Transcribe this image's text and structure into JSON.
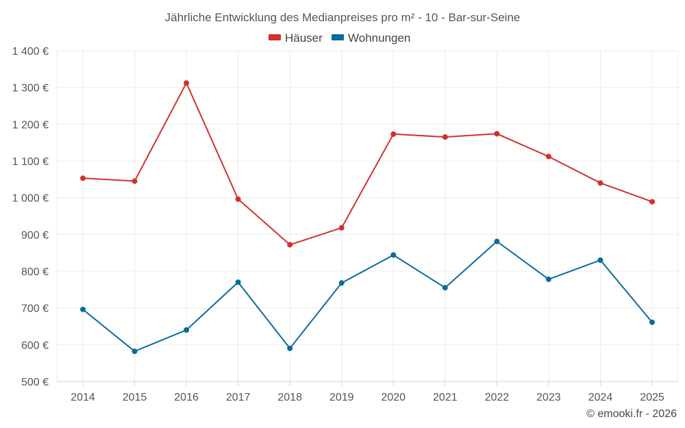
{
  "chart_data": {
    "type": "line",
    "title": "Jährliche Entwicklung des Medianpreises pro m² - 10 - Bar-sur-Seine",
    "categories": [
      "2014",
      "2015",
      "2016",
      "2017",
      "2018",
      "2019",
      "2020",
      "2021",
      "2022",
      "2023",
      "2024",
      "2025"
    ],
    "ylim": [
      500,
      1400
    ],
    "yticks": [
      500,
      600,
      700,
      800,
      900,
      1000,
      1100,
      1200,
      1300,
      1400
    ],
    "ytick_labels": [
      "500 €",
      "600 €",
      "700 €",
      "800 €",
      "900 €",
      "1 000 €",
      "1 100 €",
      "1 200 €",
      "1 300 €",
      "1 400 €"
    ],
    "grid": true,
    "legend_position": "top-center",
    "series": [
      {
        "name": "Häuser",
        "color": "#d32f2f",
        "values": [
          1053,
          1045,
          1312,
          996,
          872,
          918,
          1173,
          1165,
          1174,
          1112,
          1040,
          989
        ]
      },
      {
        "name": "Wohnungen",
        "color": "#0b6a9e",
        "values": [
          696,
          582,
          640,
          770,
          590,
          768,
          844,
          755,
          881,
          778,
          830,
          661
        ]
      }
    ],
    "credit": "© emooki.fr - 2026"
  }
}
